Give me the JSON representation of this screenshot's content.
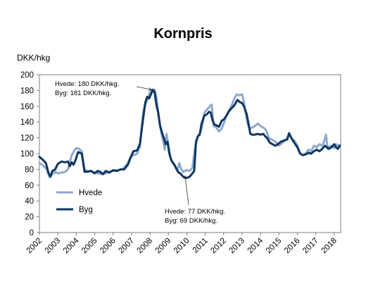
{
  "chart_data": {
    "type": "line",
    "title": "Kornpris",
    "ylabel": "DKK/hkg",
    "xlabel": "",
    "ylim": [
      0,
      200
    ],
    "yticks": [
      0,
      20,
      40,
      60,
      80,
      100,
      120,
      140,
      160,
      180,
      200
    ],
    "xlim": [
      2002.0,
      2018.35
    ],
    "xticks": [
      "2002",
      "2003",
      "2004",
      "2005",
      "2006",
      "2007",
      "2008",
      "2009",
      "2010",
      "2011",
      "2012",
      "2013",
      "2014",
      "2015",
      "2016",
      "2017",
      "2018"
    ],
    "grid": false,
    "legend_position": "bottom-left",
    "series": [
      {
        "name": "Hvede",
        "color": "#8EA9CF",
        "points": [
          [
            2002.0,
            88
          ],
          [
            2002.2,
            85
          ],
          [
            2002.4,
            80
          ],
          [
            2002.55,
            70
          ],
          [
            2002.7,
            74
          ],
          [
            2002.85,
            77
          ],
          [
            2003.0,
            75
          ],
          [
            2003.2,
            76
          ],
          [
            2003.4,
            77
          ],
          [
            2003.55,
            80
          ],
          [
            2003.75,
            98
          ],
          [
            2003.9,
            104
          ],
          [
            2004.0,
            107
          ],
          [
            2004.15,
            106
          ],
          [
            2004.3,
            103
          ],
          [
            2004.45,
            80
          ],
          [
            2004.6,
            78
          ],
          [
            2004.8,
            78
          ],
          [
            2005.0,
            76
          ],
          [
            2005.2,
            75
          ],
          [
            2005.4,
            74
          ],
          [
            2005.6,
            75
          ],
          [
            2005.8,
            77
          ],
          [
            2006.0,
            78
          ],
          [
            2006.3,
            79
          ],
          [
            2006.55,
            81
          ],
          [
            2006.8,
            88
          ],
          [
            2006.95,
            96
          ],
          [
            2007.1,
            98
          ],
          [
            2007.3,
            100
          ],
          [
            2007.45,
            108
          ],
          [
            2007.55,
            135
          ],
          [
            2007.65,
            155
          ],
          [
            2007.75,
            162
          ],
          [
            2007.85,
            168
          ],
          [
            2007.95,
            175
          ],
          [
            2008.05,
            180
          ],
          [
            2008.15,
            178
          ],
          [
            2008.25,
            181
          ],
          [
            2008.35,
            172
          ],
          [
            2008.45,
            150
          ],
          [
            2008.55,
            135
          ],
          [
            2008.65,
            122
          ],
          [
            2008.75,
            112
          ],
          [
            2008.8,
            105
          ],
          [
            2008.9,
            125
          ],
          [
            2009.0,
            112
          ],
          [
            2009.1,
            96
          ],
          [
            2009.2,
            90
          ],
          [
            2009.3,
            87
          ],
          [
            2009.4,
            82
          ],
          [
            2009.5,
            80
          ],
          [
            2009.6,
            88
          ],
          [
            2009.7,
            80
          ],
          [
            2009.8,
            77
          ],
          [
            2009.9,
            78
          ],
          [
            2010.0,
            79
          ],
          [
            2010.15,
            78
          ],
          [
            2010.3,
            82
          ],
          [
            2010.45,
            108
          ],
          [
            2010.6,
            122
          ],
          [
            2010.75,
            128
          ],
          [
            2010.85,
            137
          ],
          [
            2010.95,
            152
          ],
          [
            2011.1,
            156
          ],
          [
            2011.25,
            160
          ],
          [
            2011.35,
            162
          ],
          [
            2011.45,
            135
          ],
          [
            2011.6,
            133
          ],
          [
            2011.75,
            128
          ],
          [
            2011.9,
            132
          ],
          [
            2012.0,
            138
          ],
          [
            2012.15,
            148
          ],
          [
            2012.3,
            155
          ],
          [
            2012.45,
            162
          ],
          [
            2012.55,
            168
          ],
          [
            2012.7,
            175
          ],
          [
            2012.85,
            174
          ],
          [
            2013.0,
            175
          ],
          [
            2013.1,
            165
          ],
          [
            2013.2,
            150
          ],
          [
            2013.3,
            138
          ],
          [
            2013.4,
            132
          ],
          [
            2013.55,
            133
          ],
          [
            2013.7,
            135
          ],
          [
            2013.85,
            138
          ],
          [
            2014.0,
            135
          ],
          [
            2014.15,
            133
          ],
          [
            2014.3,
            130
          ],
          [
            2014.45,
            120
          ],
          [
            2014.6,
            118
          ],
          [
            2014.75,
            116
          ],
          [
            2014.9,
            113
          ],
          [
            2015.0,
            110
          ],
          [
            2015.2,
            114
          ],
          [
            2015.4,
            118
          ],
          [
            2015.55,
            124
          ],
          [
            2015.7,
            119
          ],
          [
            2015.85,
            116
          ],
          [
            2016.0,
            110
          ],
          [
            2016.15,
            100
          ],
          [
            2016.3,
            98
          ],
          [
            2016.45,
            100
          ],
          [
            2016.6,
            105
          ],
          [
            2016.75,
            103
          ],
          [
            2016.9,
            110
          ],
          [
            2017.05,
            108
          ],
          [
            2017.2,
            112
          ],
          [
            2017.35,
            110
          ],
          [
            2017.45,
            115
          ],
          [
            2017.55,
            124
          ],
          [
            2017.65,
            106
          ],
          [
            2017.75,
            109
          ],
          [
            2017.85,
            110
          ],
          [
            2018.0,
            107
          ],
          [
            2018.1,
            112
          ],
          [
            2018.2,
            110
          ],
          [
            2018.3,
            111
          ]
        ]
      },
      {
        "name": "Byg",
        "color": "#0D3660",
        "points": [
          [
            2002.0,
            96
          ],
          [
            2002.2,
            92
          ],
          [
            2002.35,
            88
          ],
          [
            2002.5,
            75
          ],
          [
            2002.6,
            71
          ],
          [
            2002.7,
            78
          ],
          [
            2002.85,
            80
          ],
          [
            2003.0,
            87
          ],
          [
            2003.2,
            90
          ],
          [
            2003.4,
            89
          ],
          [
            2003.55,
            90
          ],
          [
            2003.65,
            84
          ],
          [
            2003.75,
            89
          ],
          [
            2003.85,
            86
          ],
          [
            2003.95,
            91
          ],
          [
            2004.1,
            102
          ],
          [
            2004.3,
            100
          ],
          [
            2004.45,
            77
          ],
          [
            2004.6,
            77
          ],
          [
            2004.8,
            78
          ],
          [
            2005.0,
            75
          ],
          [
            2005.15,
            78
          ],
          [
            2005.3,
            77
          ],
          [
            2005.45,
            74
          ],
          [
            2005.6,
            78
          ],
          [
            2005.8,
            76
          ],
          [
            2006.0,
            79
          ],
          [
            2006.2,
            78
          ],
          [
            2006.4,
            80
          ],
          [
            2006.6,
            80
          ],
          [
            2006.8,
            86
          ],
          [
            2006.95,
            95
          ],
          [
            2007.1,
            103
          ],
          [
            2007.3,
            104
          ],
          [
            2007.45,
            112
          ],
          [
            2007.55,
            130
          ],
          [
            2007.65,
            148
          ],
          [
            2007.75,
            165
          ],
          [
            2007.85,
            172
          ],
          [
            2007.95,
            170
          ],
          [
            2008.05,
            175
          ],
          [
            2008.15,
            181
          ],
          [
            2008.25,
            178
          ],
          [
            2008.35,
            162
          ],
          [
            2008.45,
            152
          ],
          [
            2008.55,
            135
          ],
          [
            2008.65,
            127
          ],
          [
            2008.75,
            120
          ],
          [
            2008.85,
            112
          ],
          [
            2008.95,
            115
          ],
          [
            2009.05,
            100
          ],
          [
            2009.15,
            92
          ],
          [
            2009.25,
            88
          ],
          [
            2009.35,
            85
          ],
          [
            2009.45,
            80
          ],
          [
            2009.55,
            76
          ],
          [
            2009.65,
            75
          ],
          [
            2009.75,
            72
          ],
          [
            2009.85,
            70
          ],
          [
            2009.95,
            69
          ],
          [
            2010.1,
            70
          ],
          [
            2010.2,
            72
          ],
          [
            2010.3,
            75
          ],
          [
            2010.4,
            78
          ],
          [
            2010.5,
            115
          ],
          [
            2010.6,
            122
          ],
          [
            2010.7,
            124
          ],
          [
            2010.8,
            138
          ],
          [
            2010.95,
            148
          ],
          [
            2011.1,
            150
          ],
          [
            2011.2,
            153
          ],
          [
            2011.3,
            152
          ],
          [
            2011.4,
            142
          ],
          [
            2011.5,
            137
          ],
          [
            2011.6,
            136
          ],
          [
            2011.75,
            134
          ],
          [
            2011.9,
            142
          ],
          [
            2012.0,
            143
          ],
          [
            2012.15,
            148
          ],
          [
            2012.3,
            154
          ],
          [
            2012.45,
            158
          ],
          [
            2012.6,
            162
          ],
          [
            2012.75,
            168
          ],
          [
            2012.9,
            165
          ],
          [
            2013.0,
            164
          ],
          [
            2013.1,
            160
          ],
          [
            2013.25,
            150
          ],
          [
            2013.35,
            138
          ],
          [
            2013.45,
            125
          ],
          [
            2013.55,
            124
          ],
          [
            2013.7,
            124
          ],
          [
            2013.85,
            125
          ],
          [
            2014.0,
            124
          ],
          [
            2014.15,
            125
          ],
          [
            2014.25,
            122
          ],
          [
            2014.35,
            120
          ],
          [
            2014.5,
            114
          ],
          [
            2014.65,
            112
          ],
          [
            2014.8,
            110
          ],
          [
            2014.95,
            112
          ],
          [
            2015.1,
            115
          ],
          [
            2015.3,
            117
          ],
          [
            2015.45,
            118
          ],
          [
            2015.55,
            126
          ],
          [
            2015.65,
            121
          ],
          [
            2015.8,
            115
          ],
          [
            2016.0,
            108
          ],
          [
            2016.15,
            100
          ],
          [
            2016.3,
            98
          ],
          [
            2016.45,
            99
          ],
          [
            2016.6,
            101
          ],
          [
            2016.75,
            100
          ],
          [
            2016.9,
            103
          ],
          [
            2017.05,
            105
          ],
          [
            2017.2,
            103
          ],
          [
            2017.35,
            106
          ],
          [
            2017.5,
            110
          ],
          [
            2017.6,
            108
          ],
          [
            2017.7,
            106
          ],
          [
            2017.85,
            108
          ],
          [
            2018.0,
            112
          ],
          [
            2018.1,
            108
          ],
          [
            2018.2,
            106
          ],
          [
            2018.3,
            110
          ]
        ]
      }
    ],
    "annotations": [
      {
        "lines": [
          "Hvede: 180 DKK/hkg.",
          "Byg: 181 DKK/hkg."
        ],
        "points_to": [
          2008.1,
          181
        ]
      },
      {
        "lines": [
          "Hvede: 77 DKK/hkg.",
          "Byg: 69 DKK/hkg."
        ],
        "points_to": [
          2009.9,
          72
        ]
      }
    ]
  }
}
